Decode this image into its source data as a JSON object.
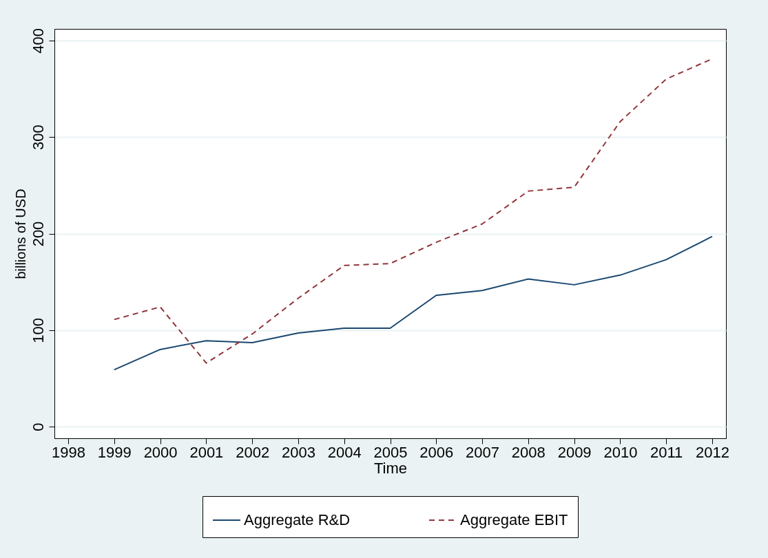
{
  "chart_data": {
    "type": "line",
    "xlabel": "Time",
    "ylabel": "billions of USD",
    "x": [
      1999,
      2000,
      2001,
      2002,
      2003,
      2004,
      2005,
      2006,
      2007,
      2008,
      2009,
      2010,
      2011,
      2012
    ],
    "series": [
      {
        "name": "Aggregate R&D",
        "color": "#1a476f",
        "line_style": "solid",
        "values": [
          59,
          80,
          89,
          87,
          97,
          102,
          102,
          136,
          141,
          153,
          147,
          157,
          173,
          197
        ]
      },
      {
        "name": "Aggregate EBIT",
        "color": "#90353b",
        "line_style": "dashed",
        "values": [
          111,
          124,
          66,
          96,
          133,
          167,
          169,
          191,
          210,
          244,
          248,
          316,
          360,
          381
        ]
      }
    ],
    "xlim": [
      1997.7,
      2012.3
    ],
    "xticks": [
      1998,
      1999,
      2000,
      2001,
      2002,
      2003,
      2004,
      2005,
      2006,
      2007,
      2008,
      2009,
      2010,
      2011,
      2012
    ],
    "ylim": [
      -12,
      412
    ],
    "yticks": [
      0,
      100,
      200,
      300,
      400
    ],
    "grid": "y",
    "legend": "bottom",
    "marker": "none"
  }
}
